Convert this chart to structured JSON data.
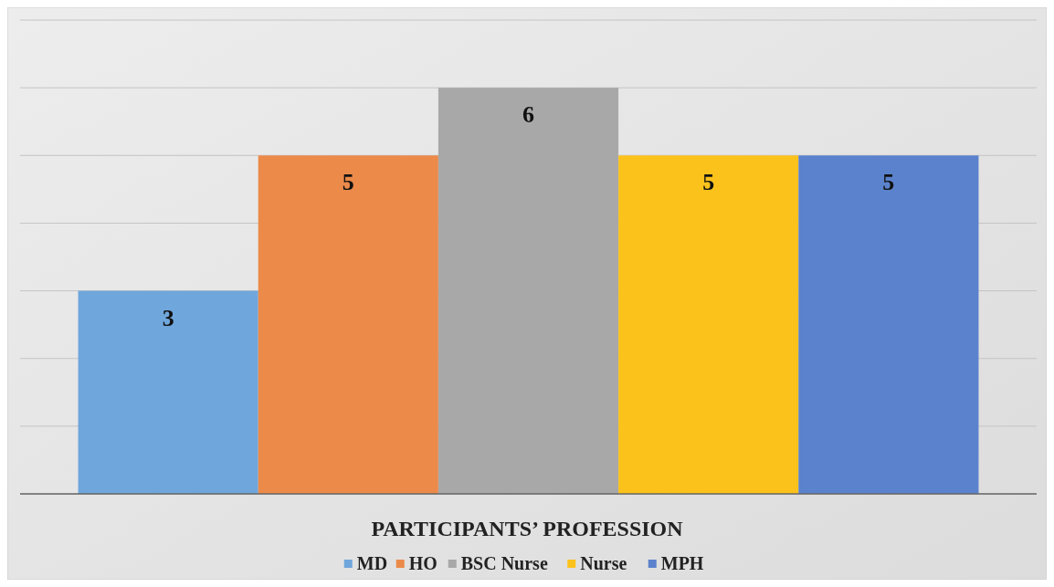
{
  "chart_data": {
    "type": "bar",
    "xlabel": "PARTICIPANTS’ PROFESSION",
    "categories": [
      null
    ],
    "series": [
      {
        "name": "MD",
        "color": "#6fa6dc",
        "values": [
          3
        ]
      },
      {
        "name": "HO",
        "color": "#ec8a4a",
        "values": [
          5
        ]
      },
      {
        "name": "BSC Nurse",
        "color": "#a8a8a8",
        "values": [
          6
        ]
      },
      {
        "name": "Nurse",
        "color": "#fcc21c",
        "values": [
          5
        ]
      },
      {
        "name": "MPH",
        "color": "#5b82cc",
        "values": [
          5
        ]
      }
    ],
    "ylim": [
      0,
      7
    ],
    "yticks": [
      {
        "value": 0,
        "label": null
      },
      {
        "value": 1,
        "label": null
      },
      {
        "value": 2,
        "label": null
      },
      {
        "value": 3,
        "label": null
      },
      {
        "value": 4,
        "label": null
      },
      {
        "value": 5,
        "label": null
      },
      {
        "value": 6,
        "label": null
      },
      {
        "value": 7,
        "label": null
      }
    ],
    "grid": "y",
    "legend": "bottom",
    "data_labels": true
  }
}
